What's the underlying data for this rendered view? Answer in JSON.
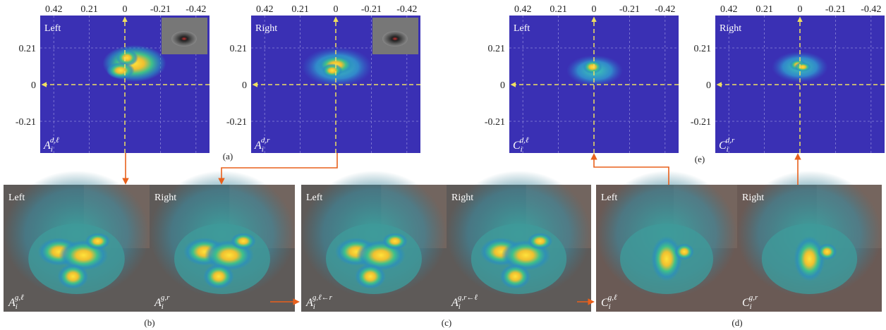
{
  "figure": {
    "x_ticks": [
      "0.42",
      "0.21",
      "0",
      "-0.21",
      "-0.42"
    ],
    "y_ticks": [
      "0.21",
      "0",
      "-0.21"
    ],
    "top_panels": [
      {
        "corner": "Left",
        "label": {
          "base": "A",
          "sub": "i",
          "sup": "d,ℓ"
        }
      },
      {
        "corner": "Right",
        "label": {
          "base": "A",
          "sub": "i",
          "sup": "d,r"
        }
      },
      {
        "corner": "Left",
        "label": {
          "base": "C",
          "sub": "i",
          "sup": "d,ℓ"
        }
      },
      {
        "corner": "Right",
        "label": {
          "base": "C",
          "sub": "i",
          "sup": "d,r"
        }
      }
    ],
    "images": [
      {
        "corner": "Left",
        "label": {
          "base": "A",
          "sub": "i",
          "sup": "g,ℓ"
        }
      },
      {
        "corner": "Right",
        "label": {
          "base": "A",
          "sub": "i",
          "sup": "g,r"
        }
      },
      {
        "corner": "Left",
        "label": {
          "base": "A",
          "sub": "i",
          "sup": "g,ℓ←r"
        }
      },
      {
        "corner": "Right",
        "label": {
          "base": "A",
          "sub": "i",
          "sup": "g,r←ℓ"
        }
      },
      {
        "corner": "Left",
        "label": {
          "base": "C",
          "sub": "i",
          "sup": "g,ℓ"
        }
      },
      {
        "corner": "Right",
        "label": {
          "base": "C",
          "sub": "i",
          "sup": "g,r"
        }
      }
    ],
    "captions": [
      "(a)",
      "(b)",
      "(c)",
      "(d)",
      "(e)"
    ]
  }
}
